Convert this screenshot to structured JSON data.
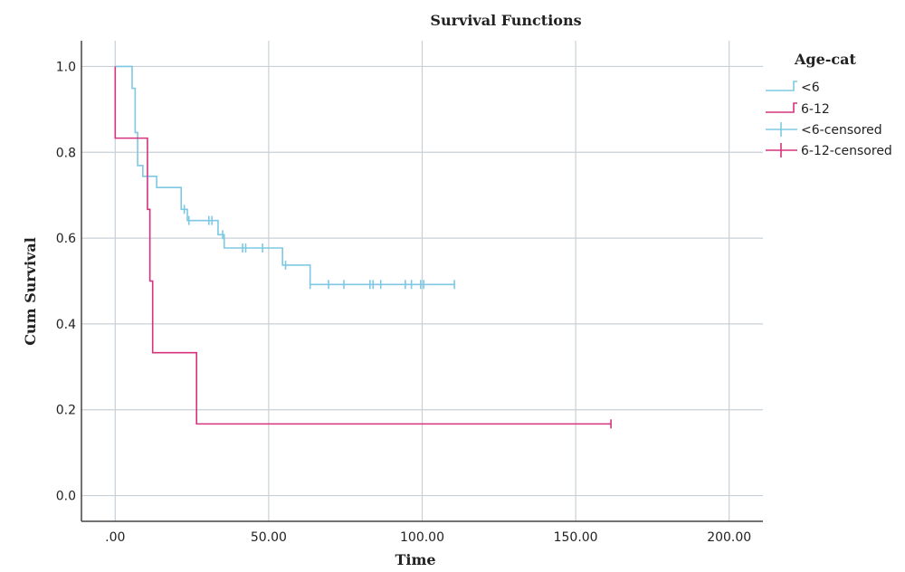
{
  "chart_data": {
    "type": "line",
    "subtype": "kaplan-meier step",
    "title": "Survival Functions",
    "xlabel": "Time",
    "ylabel": "Cum Survival",
    "xlim": [
      -11,
      211
    ],
    "ylim": [
      -0.06,
      1.06
    ],
    "x_ticks": [
      0,
      50,
      100,
      150,
      200
    ],
    "x_tick_labels": [
      ".00",
      "50.00",
      "100.00",
      "150.00",
      "200.00"
    ],
    "y_ticks": [
      0,
      0.2,
      0.4,
      0.6,
      0.8,
      1.0
    ],
    "y_tick_labels": [
      "0.0",
      "0.2",
      "0.4",
      "0.6",
      "0.8",
      "1.0"
    ],
    "grid": true,
    "legend": {
      "title": "Age-cat",
      "position": "right",
      "entries": [
        {
          "label": "<6",
          "marker": "step",
          "color": "#7ec8e3"
        },
        {
          "label": "6-12",
          "marker": "step",
          "color": "#d6337f"
        },
        {
          "label": "<6-censored",
          "marker": "cross",
          "color": "#7ec8e3"
        },
        {
          "label": "6-12-censored",
          "marker": "cross",
          "color": "#d6337f"
        }
      ]
    },
    "series": [
      {
        "name": "<6",
        "color": "#7ec8e3",
        "steps": [
          [
            0,
            1.0
          ],
          [
            5.5,
            0.949
          ],
          [
            6.5,
            0.846
          ],
          [
            7.3,
            0.769
          ],
          [
            9.0,
            0.744
          ],
          [
            13.5,
            0.718
          ],
          [
            21.5,
            0.667
          ],
          [
            23.5,
            0.641
          ],
          [
            33.5,
            0.608
          ],
          [
            35.5,
            0.577
          ],
          [
            54.5,
            0.537
          ],
          [
            63.5,
            0.492
          ],
          [
            110.5,
            0.492
          ]
        ],
        "censored": [
          [
            22.5,
            0.667
          ],
          [
            24,
            0.641
          ],
          [
            30.5,
            0.641
          ],
          [
            31.5,
            0.641
          ],
          [
            35,
            0.608
          ],
          [
            41.5,
            0.577
          ],
          [
            42.5,
            0.577
          ],
          [
            48,
            0.577
          ],
          [
            55.5,
            0.537
          ],
          [
            63.5,
            0.492
          ],
          [
            69.5,
            0.492
          ],
          [
            74.5,
            0.492
          ],
          [
            83,
            0.492
          ],
          [
            84,
            0.492
          ],
          [
            86.5,
            0.492
          ],
          [
            94.5,
            0.492
          ],
          [
            96.5,
            0.492
          ],
          [
            99.5,
            0.492
          ],
          [
            100.5,
            0.492
          ],
          [
            110.5,
            0.492
          ]
        ]
      },
      {
        "name": "6-12",
        "color": "#d6337f",
        "steps": [
          [
            0,
            1.0
          ],
          [
            0,
            0.833
          ],
          [
            10.5,
            0.667
          ],
          [
            11.3,
            0.5
          ],
          [
            12.2,
            0.333
          ],
          [
            26.5,
            0.167
          ],
          [
            161.5,
            0.167
          ]
        ],
        "censored": [
          [
            161.5,
            0.167
          ]
        ]
      }
    ]
  }
}
